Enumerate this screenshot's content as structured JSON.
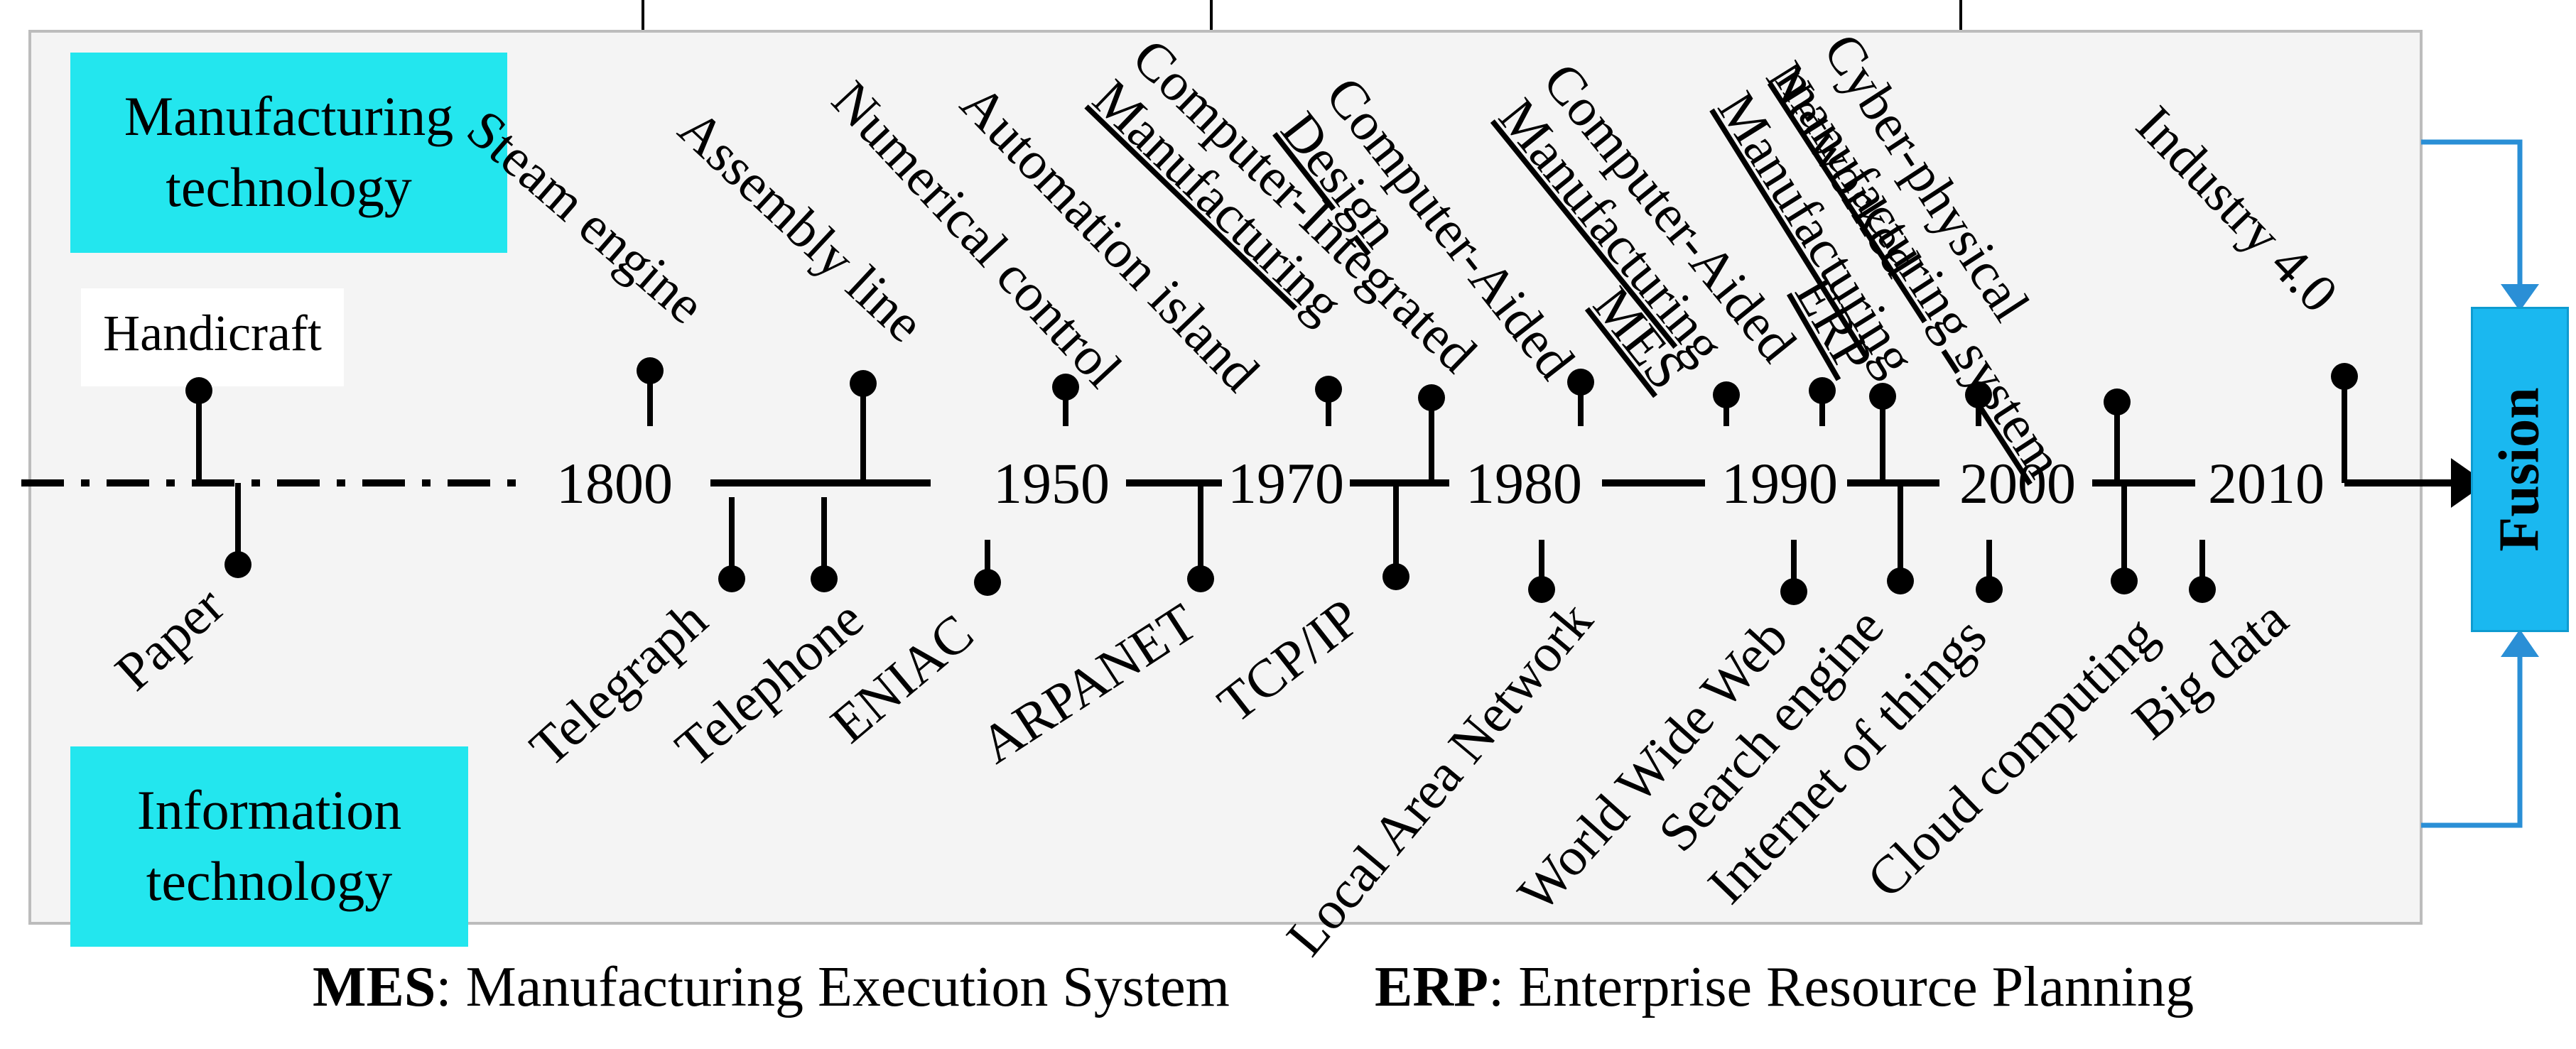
{
  "boxes": {
    "manufacturing": [
      "Manufacturing",
      "technology"
    ],
    "information": [
      "Information",
      "technology"
    ],
    "handicraft": "Handicraft",
    "fusion": "Fusion"
  },
  "years": [
    "1800",
    "1950",
    "1970",
    "1980",
    "1990",
    "2000",
    "2010"
  ],
  "manufacturing_events": [
    {
      "label": "Steam engine",
      "lines": [
        "Steam engine"
      ]
    },
    {
      "label": "Assembly line",
      "lines": [
        "Assembly line"
      ]
    },
    {
      "label": "Numerical control",
      "lines": [
        "Numerical control"
      ]
    },
    {
      "label": "Automation island",
      "lines": [
        "Automation island"
      ]
    },
    {
      "label": "Computer-Integrated Manufacturing",
      "lines": [
        "Computer-Integrated",
        "Manufacturing"
      ]
    },
    {
      "label": "Computer-Aided Design",
      "lines": [
        "Computer-Aided",
        "Design"
      ]
    },
    {
      "label": "MES",
      "lines": [
        "MES"
      ]
    },
    {
      "label": "Computer-Aided Manufacturing",
      "lines": [
        "Computer-Aided",
        "Manufacturing"
      ]
    },
    {
      "label": "ERP",
      "lines": [
        "ERP"
      ]
    },
    {
      "label": "Networked Manufacturing",
      "lines": [
        "Networked",
        "Manufacturing"
      ]
    },
    {
      "label": "Cyber-physical manufacturing system",
      "lines": [
        "Cyber-physical",
        "manufacturing system"
      ]
    },
    {
      "label": "Industry 4.0",
      "lines": [
        "Industry 4.0"
      ]
    }
  ],
  "information_events": [
    "Paper",
    "Telegraph",
    "Telephone",
    "ENIAC",
    "ARPANET",
    "TCP/IP",
    "Local Area Network",
    "World Wide Web",
    "Search engine",
    "Internet of things",
    "Cloud computing",
    "Big data"
  ],
  "legend": {
    "mes_abbr": "MES",
    "mes_def": ": Manufacturing Execution System",
    "erp_abbr": "ERP",
    "erp_def": ": Enterprise Resource Planning"
  },
  "colors": {
    "box_fill": "#23e6ee",
    "fusion_fill": "#1ab8f0",
    "arrow_blue": "#2a8fd6",
    "line": "#000000"
  }
}
